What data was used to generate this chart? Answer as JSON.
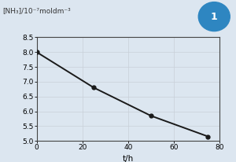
{
  "x": [
    0,
    25,
    50,
    75
  ],
  "y": [
    8.0,
    6.8,
    5.85,
    5.15
  ],
  "xlim": [
    0,
    80
  ],
  "ylim": [
    5.0,
    8.5
  ],
  "xticks": [
    0,
    20,
    40,
    60,
    80
  ],
  "yticks": [
    5.0,
    5.5,
    6.0,
    6.5,
    7.0,
    7.5,
    8.0,
    8.5
  ],
  "xlabel": "t/h",
  "ylabel_top": "[NH₃]/10⁻⁷moldm⁻³",
  "line_color": "#1a1a1a",
  "marker_color": "#1a1a1a",
  "grid_color": "#c8d0d8",
  "bg_color": "#dce6f0",
  "badge_color": "#2e86c1",
  "badge_text": "1"
}
